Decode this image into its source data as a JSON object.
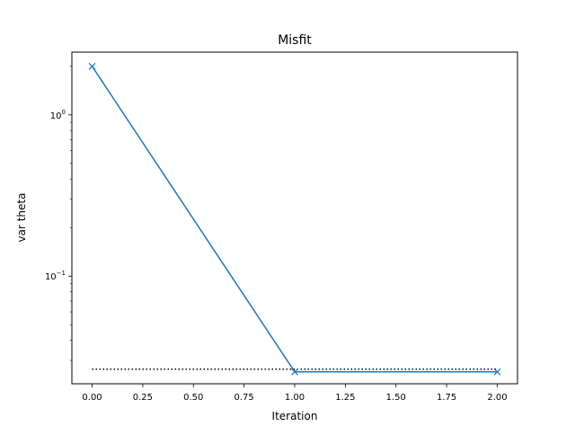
{
  "chart_data": {
    "type": "line",
    "title": "Misfit",
    "xlabel": "Iteration",
    "ylabel": "var theta",
    "yscale": "log",
    "xlim": [
      -0.1,
      2.1
    ],
    "ylim": [
      0.0215,
      2.45
    ],
    "x_ticks": [
      0.0,
      0.25,
      0.5,
      0.75,
      1.0,
      1.25,
      1.5,
      1.75,
      2.0
    ],
    "x_tick_labels": [
      "0.00",
      "0.25",
      "0.50",
      "0.75",
      "1.00",
      "1.25",
      "1.50",
      "1.75",
      "2.00"
    ],
    "y_major_ticks": [
      {
        "value": 1,
        "base": "10",
        "exp": "0"
      },
      {
        "value": 0.1,
        "base": "10",
        "exp": "−1"
      }
    ],
    "y_minor_ticks": [
      0.03,
      0.04,
      0.05,
      0.06,
      0.07,
      0.08,
      0.09,
      0.2,
      0.3,
      0.4,
      0.5,
      0.6,
      0.7,
      0.8,
      0.9,
      2
    ],
    "grid": false,
    "series": [
      {
        "marker": "x",
        "line_style": "solid",
        "color": "#1f77b4",
        "x": [
          0,
          1,
          2
        ],
        "y": [
          2.0,
          0.0255,
          0.0255
        ]
      }
    ],
    "reference_line": {
      "line_style": "dotted",
      "color": "#000000",
      "x": [
        0,
        2
      ],
      "y": 0.0265
    }
  }
}
